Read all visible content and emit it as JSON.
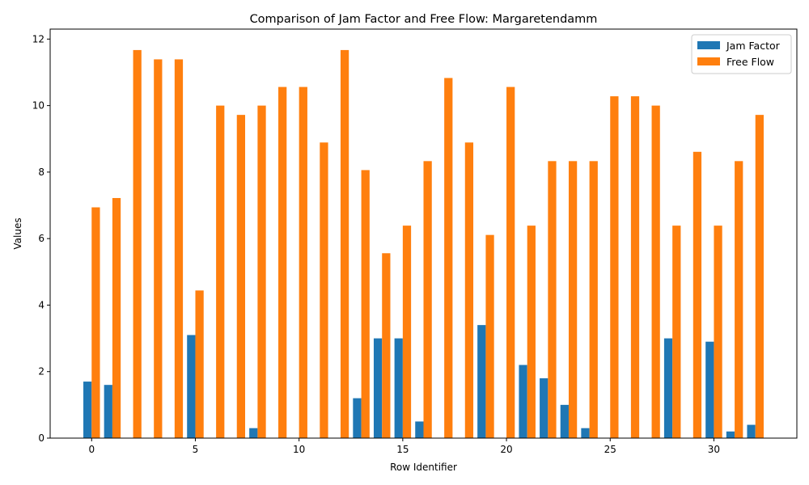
{
  "chart_data": {
    "type": "bar",
    "title": "Comparison of Jam Factor and Free Flow: Margaretendamm",
    "xlabel": "Row Identifier",
    "ylabel": "Values",
    "xlim": [
      -2.0,
      34.0
    ],
    "ylim": [
      0,
      12.3
    ],
    "xticks": [
      0,
      5,
      10,
      15,
      20,
      25,
      30
    ],
    "yticks": [
      0,
      2,
      4,
      6,
      8,
      10,
      12
    ],
    "grid": false,
    "legend_position": "top-right",
    "x": [
      0,
      1,
      2,
      3,
      4,
      5,
      6,
      7,
      8,
      9,
      10,
      11,
      12,
      13,
      14,
      15,
      16,
      17,
      18,
      19,
      20,
      21,
      22,
      23,
      24,
      25,
      26,
      27,
      28,
      29,
      30,
      31,
      32
    ],
    "series": [
      {
        "name": "Jam Factor",
        "color": "#1f77b4",
        "values": [
          1.7,
          1.6,
          0,
          0,
          0,
          3.1,
          0,
          0,
          0.3,
          0,
          0,
          0,
          0,
          1.2,
          3.0,
          3.0,
          0.5,
          0,
          0,
          3.4,
          0,
          2.2,
          1.8,
          1.0,
          0.3,
          0,
          0,
          0,
          3.0,
          0,
          2.9,
          0.2,
          0.4
        ]
      },
      {
        "name": "Free Flow",
        "color": "#ff7f0e",
        "values": [
          6.94,
          7.22,
          11.67,
          11.39,
          11.39,
          4.44,
          10.0,
          9.72,
          10.0,
          10.56,
          10.56,
          8.89,
          11.67,
          8.06,
          5.56,
          6.39,
          8.33,
          10.83,
          8.89,
          6.11,
          10.56,
          6.39,
          8.33,
          8.33,
          8.33,
          10.28,
          10.28,
          10.0,
          6.39,
          8.61,
          6.39,
          8.33,
          9.72
        ]
      }
    ]
  }
}
